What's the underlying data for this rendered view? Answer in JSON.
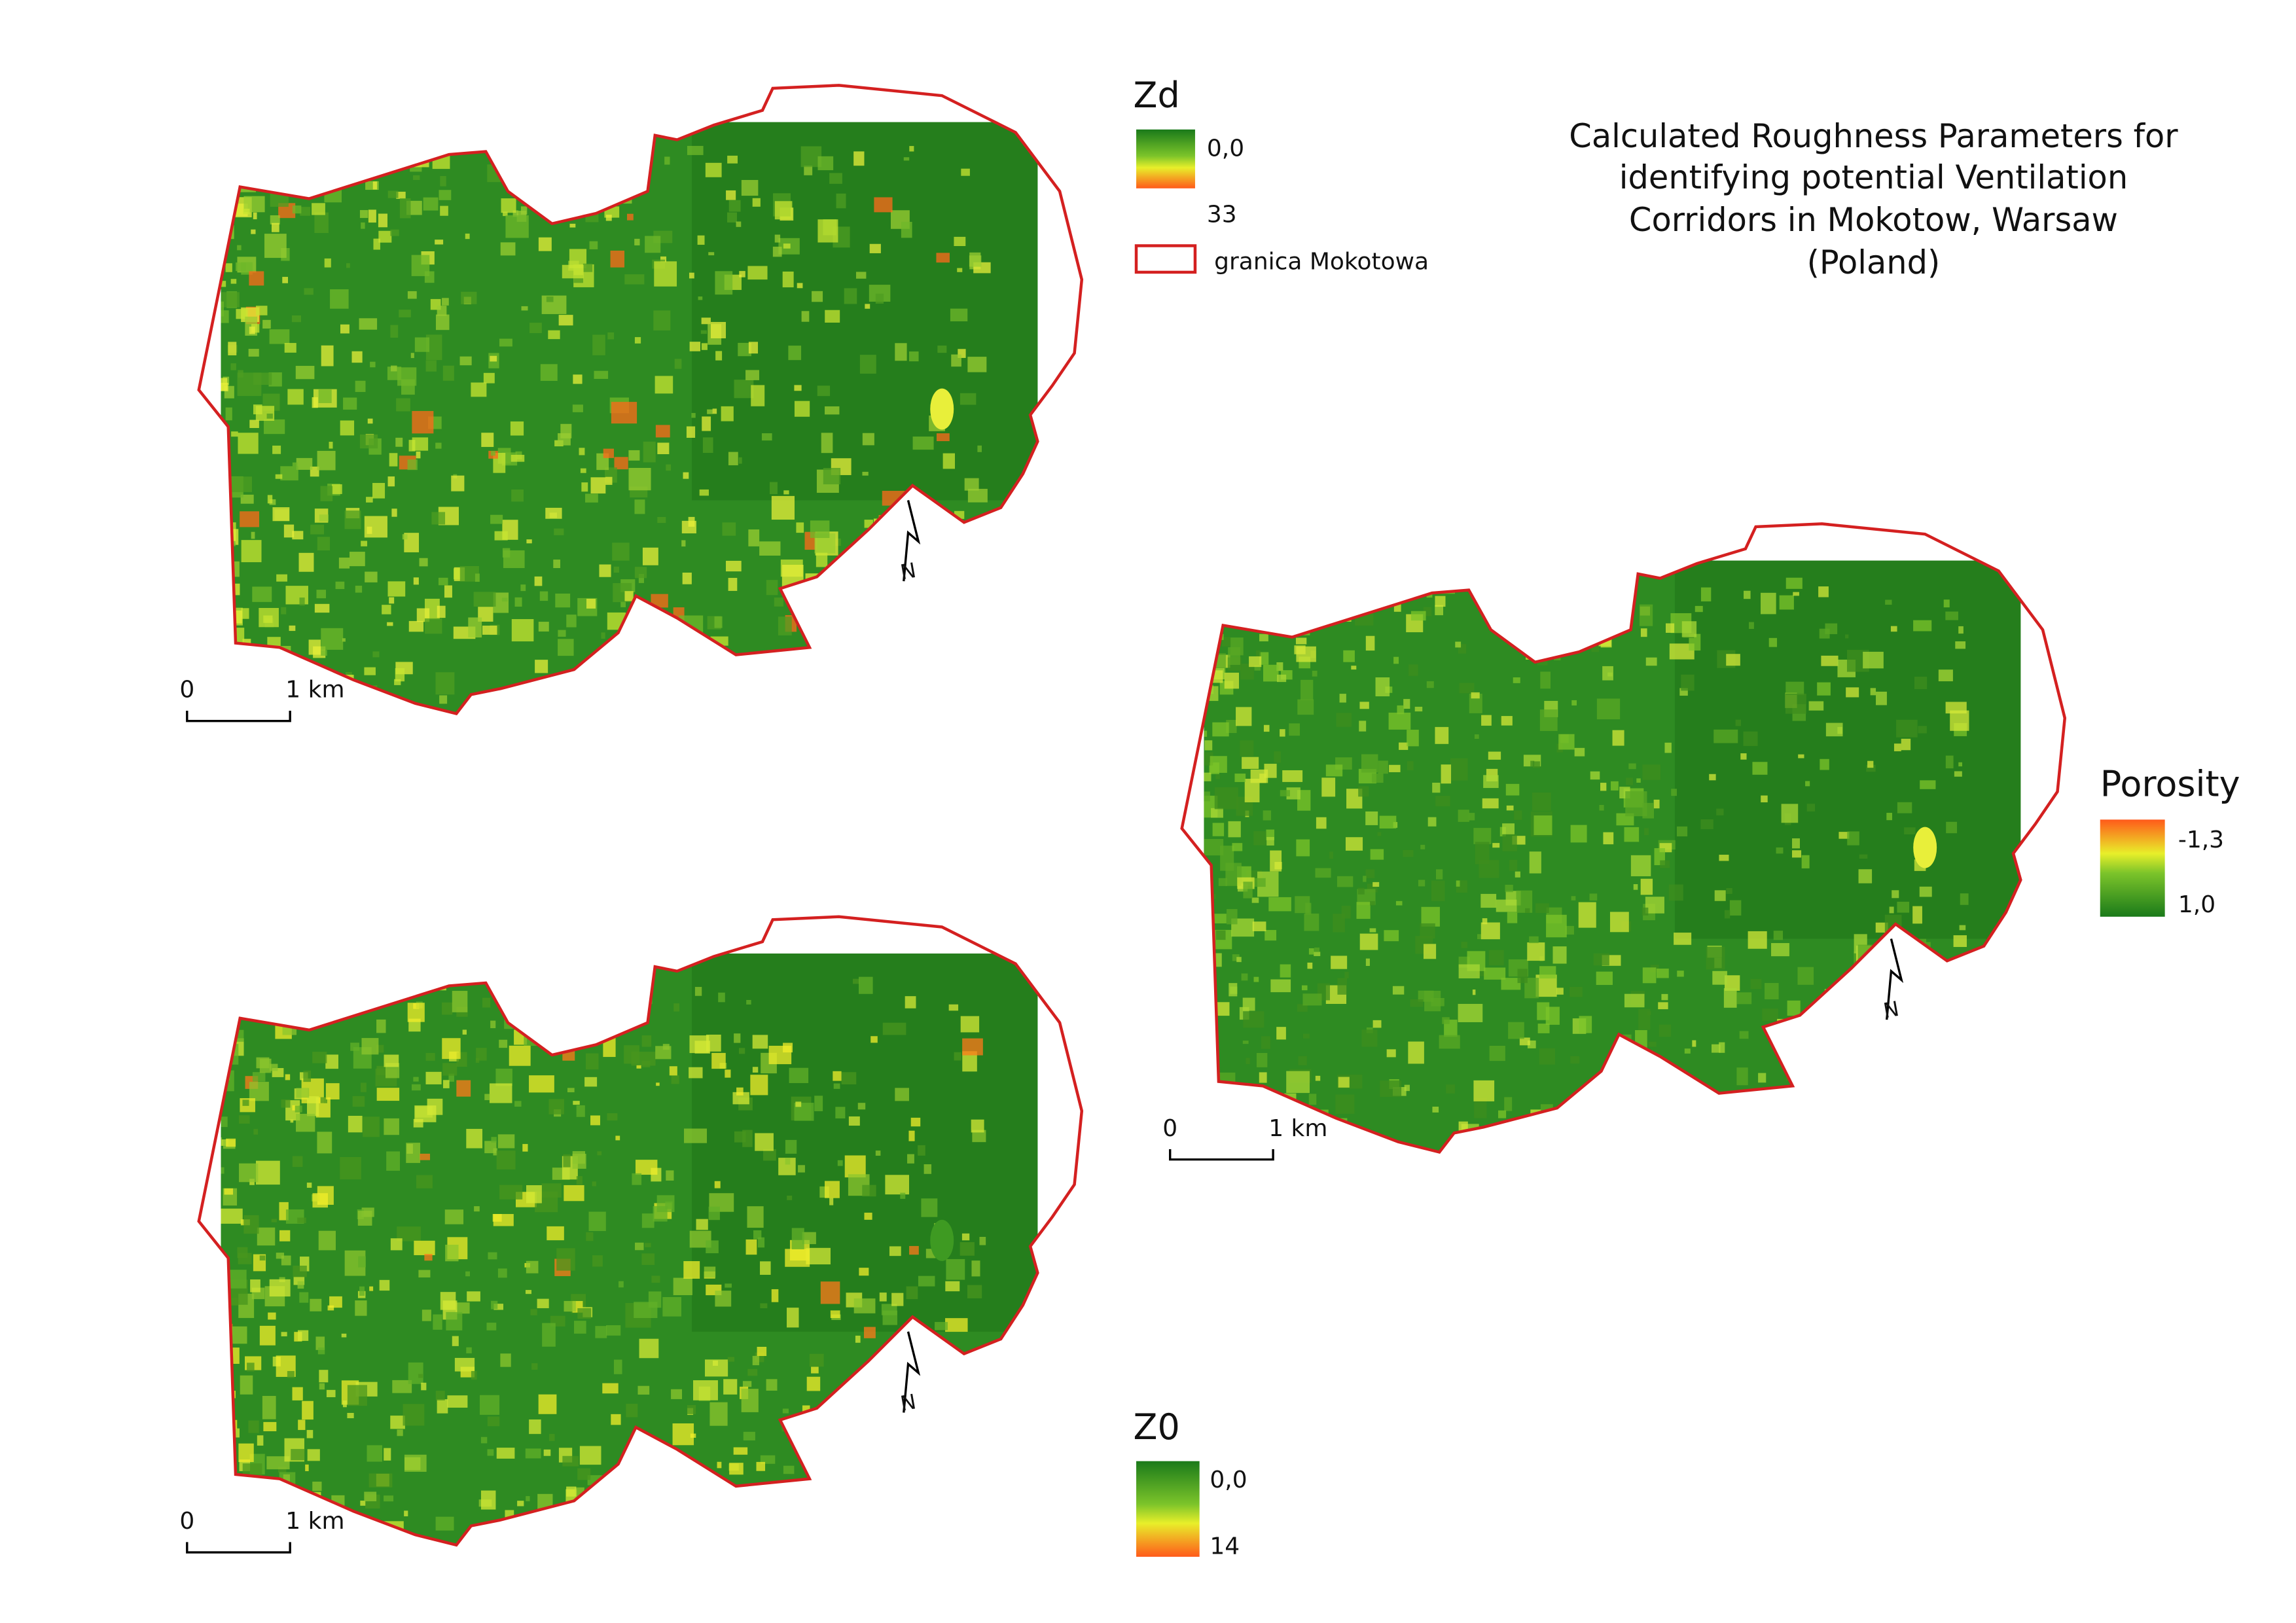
{
  "title_lines": [
    "Calculated Roughness Parameters for",
    "identifying potential Ventilation",
    "Corridors in Mokotow, Warsaw",
    "(Poland)"
  ],
  "boundary_legend": "granica Mokotowa",
  "maps": [
    {
      "legend": {
        "title": "Zd",
        "top_label": "0,0",
        "bottom_label": "33"
      },
      "scale": {
        "start": "0",
        "end": "1 km"
      },
      "north": "N"
    },
    {
      "legend": {
        "title": "Porosity",
        "top_label": "-1,3",
        "bottom_label": "1,0"
      },
      "scale": {
        "start": "0",
        "end": "1 km"
      },
      "north": "N"
    },
    {
      "legend": {
        "title": "Z0",
        "top_label": "0,0",
        "bottom_label": "14"
      },
      "scale": {
        "start": "0",
        "end": "1 km"
      },
      "north": "N"
    }
  ]
}
